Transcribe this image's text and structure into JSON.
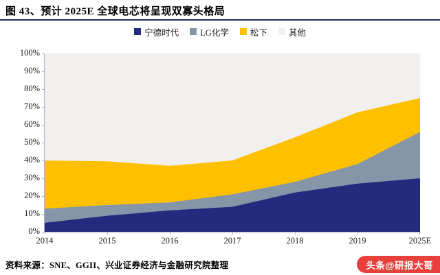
{
  "header": {
    "title": "图 43、预计 2025E 全球电芯将呈现双寡头格局"
  },
  "chart_data": {
    "type": "area",
    "stacked": true,
    "title": "图 43、预计 2025E 全球电芯将呈现双寡头格局",
    "unit": "%",
    "categories": [
      "2014",
      "2015",
      "2016",
      "2017",
      "2018",
      "2019",
      "2025E"
    ],
    "series": [
      {
        "key": "catl",
        "name": "宁德时代",
        "color": "#242A7D",
        "values": [
          5,
          9,
          12,
          14,
          22,
          27,
          30
        ]
      },
      {
        "key": "lg-chem",
        "name": "LG化学",
        "color": "#8496A8",
        "values": [
          8,
          6,
          4.5,
          7,
          6,
          11,
          26
        ]
      },
      {
        "key": "panasonic",
        "name": "松下",
        "color": "#FFC000",
        "values": [
          27,
          24.5,
          20.5,
          19,
          25,
          29,
          19
        ]
      },
      {
        "key": "others",
        "name": "其他",
        "color": "#F1F0EE",
        "values": [
          60,
          60.5,
          63,
          60,
          47,
          33,
          25
        ]
      }
    ],
    "ylim": [
      0,
      100
    ],
    "ytick_step": 10,
    "ytick_suffix": "%",
    "xlabel": "",
    "ylabel": "",
    "legend_position": "top",
    "grid": false
  },
  "footer": {
    "source": "资料来源：SNE、GGII、兴业证券经济与金融研究院整理"
  },
  "watermark": {
    "text": "头条@研报大哥",
    "color": "#E8413C"
  }
}
